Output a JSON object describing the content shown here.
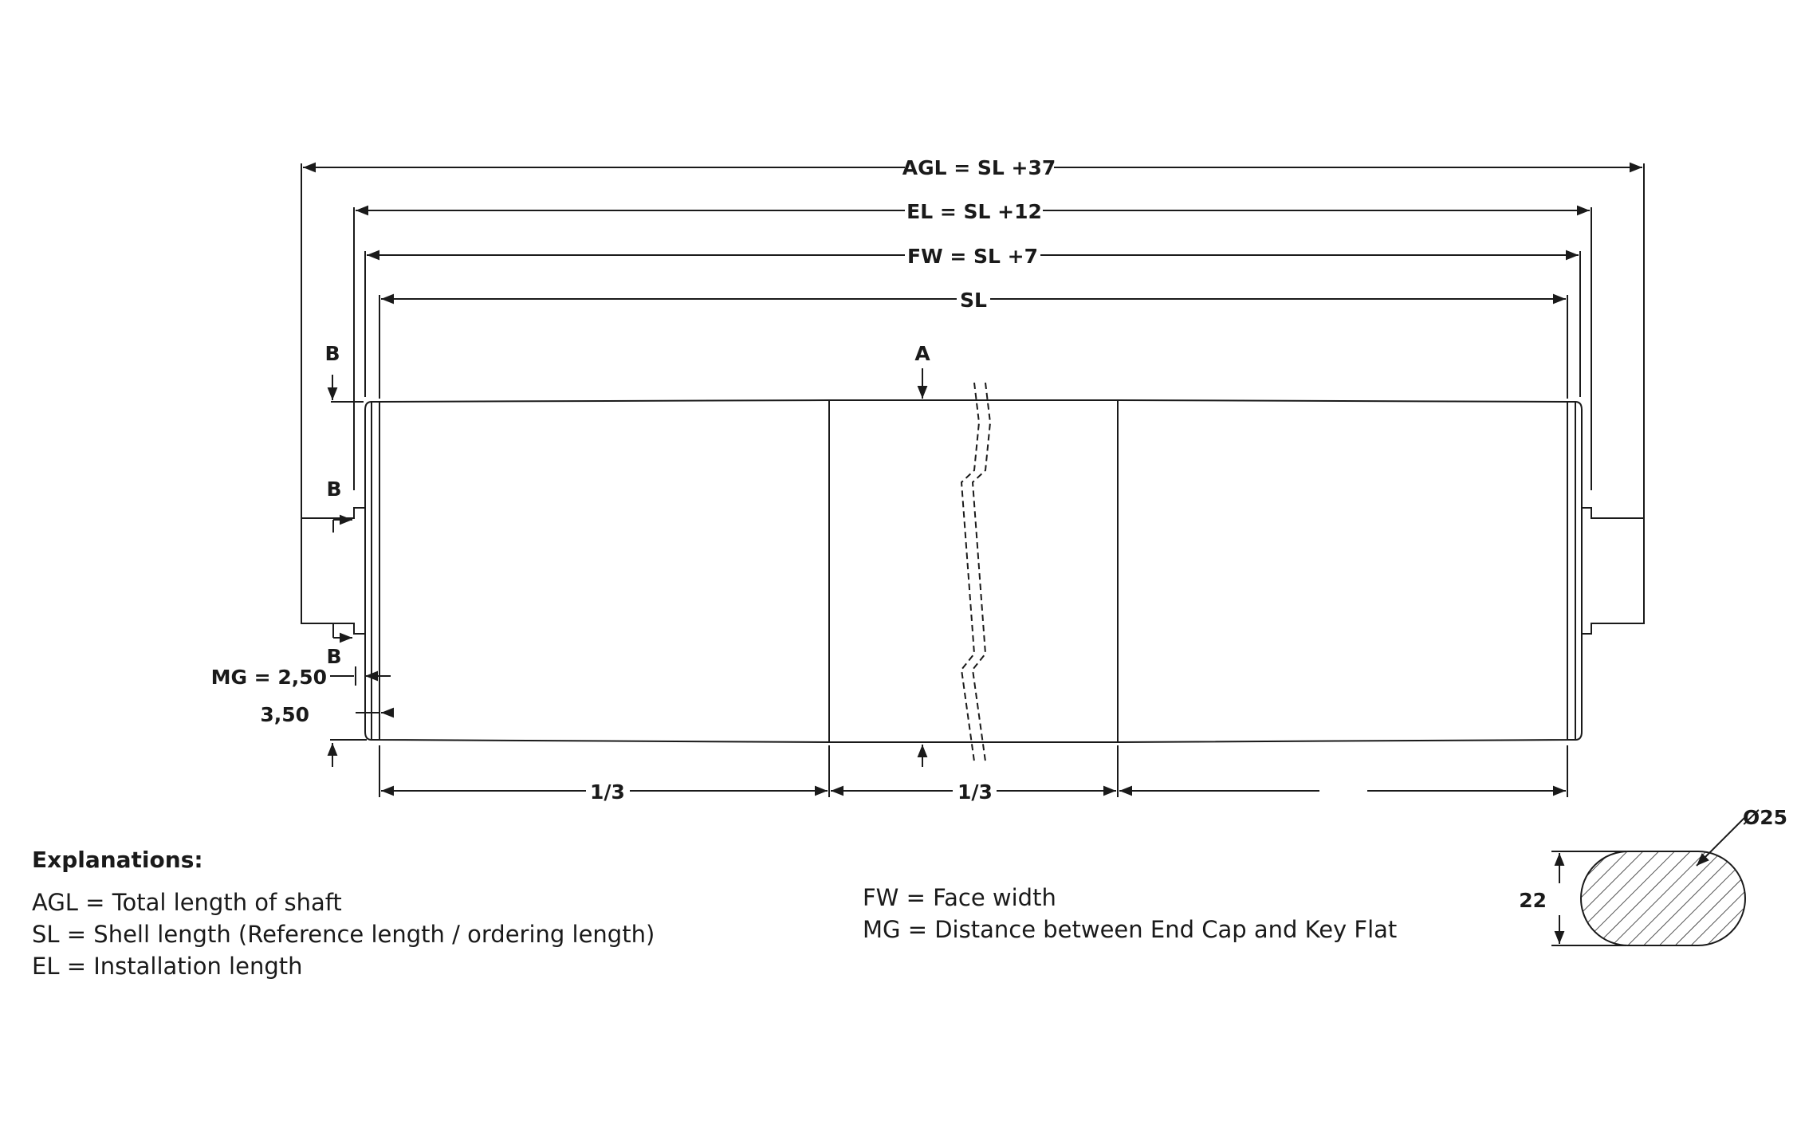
{
  "dimensions": {
    "agl": "AGL = SL +37",
    "el": "EL = SL +12",
    "fw": "FW = SL +7",
    "sl": "SL",
    "third_left": "1/3",
    "third_mid": "1/3",
    "mg": "MG = 2,50",
    "offset": "3,50",
    "shaft_diameter": "Ø25",
    "key_flat": "22"
  },
  "markers": {
    "a": "A",
    "b_top": "B",
    "b_mid": "B",
    "b_low": "B"
  },
  "explanations": {
    "title": "Explanations:",
    "left": [
      "AGL = Total length of shaft",
      "SL = Shell length (Reference length / ordering length)",
      "EL = Installation length"
    ],
    "right": [
      "FW = Face width",
      "MG = Distance between End Cap and Key Flat"
    ]
  }
}
